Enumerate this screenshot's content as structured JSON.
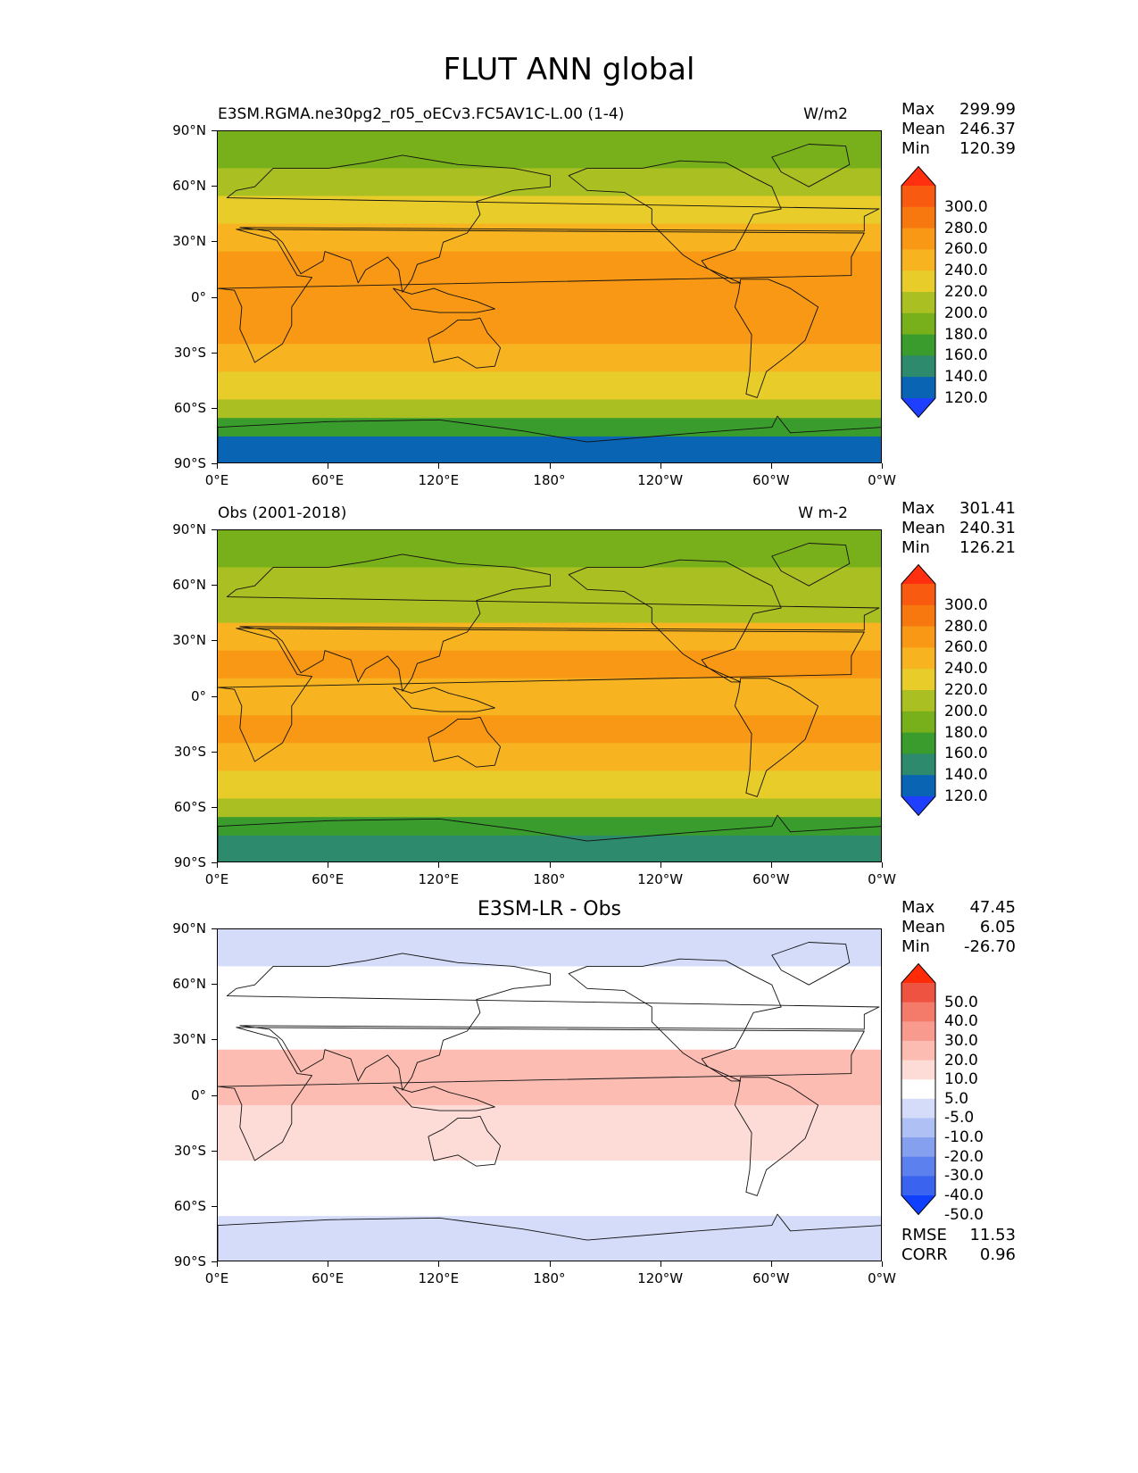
{
  "figure_title": "FLUT ANN global",
  "axis": {
    "yticks": [
      "90°N",
      "60°N",
      "30°N",
      "0°",
      "30°S",
      "60°S",
      "90°S"
    ],
    "xticks": [
      "0°E",
      "60°E",
      "120°E",
      "180°",
      "120°W",
      "60°W",
      "0°W"
    ]
  },
  "colors": {
    "abs_levels": [
      "#1f3fff",
      "#0a64b4",
      "#2e8a6c",
      "#3a9c2c",
      "#78b01c",
      "#aabf22",
      "#e8cc2a",
      "#f8b420",
      "#f89814",
      "#f87810",
      "#f85a10",
      "#ff3010"
    ],
    "diff_levels": [
      "#1040ff",
      "#3a64f0",
      "#5c80ee",
      "#86a0f0",
      "#aec0f4",
      "#d4dcfa",
      "#ffffff",
      "#fddcd8",
      "#fcbcb2",
      "#f89a8e",
      "#f47a6a",
      "#ee5240",
      "#ff2a08"
    ]
  },
  "panels": [
    {
      "left_title": "E3SM.RGMA.ne30pg2_r05_oECv3.FC5AV1C-L.00 (1-4)",
      "right_title": "W/m2",
      "center_title": "",
      "stats": [
        {
          "label": "Max",
          "value": "299.99"
        },
        {
          "label": "Mean",
          "value": "246.37"
        },
        {
          "label": "Min",
          "value": "120.39"
        }
      ],
      "colorbar_labels": [
        "300.0",
        "280.0",
        "260.0",
        "240.0",
        "220.0",
        "200.0",
        "180.0",
        "160.0",
        "140.0",
        "120.0"
      ]
    },
    {
      "left_title": "Obs (2001-2018)",
      "right_title": "W m-2",
      "center_title": "",
      "stats": [
        {
          "label": "Max",
          "value": "301.41"
        },
        {
          "label": "Mean",
          "value": "240.31"
        },
        {
          "label": "Min",
          "value": "126.21"
        }
      ],
      "colorbar_labels": [
        "300.0",
        "280.0",
        "260.0",
        "240.0",
        "220.0",
        "200.0",
        "180.0",
        "160.0",
        "140.0",
        "120.0"
      ]
    },
    {
      "left_title": "",
      "right_title": "",
      "center_title": "E3SM-LR - Obs",
      "stats": [
        {
          "label": "Max",
          "value": "47.45"
        },
        {
          "label": "Mean",
          "value": "6.05"
        },
        {
          "label": "Min",
          "value": "-26.70"
        }
      ],
      "colorbar_labels": [
        "50.0",
        "40.0",
        "30.0",
        "20.0",
        "10.0",
        "5.0",
        "-5.0",
        "-10.0",
        "-20.0",
        "-30.0",
        "-40.0",
        "-50.0"
      ],
      "footer_stats": [
        {
          "label": "RMSE",
          "value": "11.53"
        },
        {
          "label": "CORR",
          "value": "0.96"
        }
      ]
    }
  ],
  "chart_data": [
    {
      "type": "heatmap",
      "title": "E3SM.RGMA.ne30pg2_r05_oECv3.FC5AV1C-L.00 (1-4)",
      "units": "W/m2",
      "x_range": [
        0,
        360
      ],
      "y_range": [
        -90,
        90
      ],
      "levels": [
        120,
        140,
        160,
        180,
        200,
        220,
        240,
        260,
        280,
        300
      ],
      "max": 299.99,
      "mean": 246.37,
      "min": 120.39,
      "zonal_bands": [
        {
          "lat": [
            70,
            90
          ],
          "value": 185
        },
        {
          "lat": [
            55,
            70
          ],
          "value": 205
        },
        {
          "lat": [
            40,
            55
          ],
          "value": 220
        },
        {
          "lat": [
            25,
            40
          ],
          "value": 245
        },
        {
          "lat": [
            10,
            25
          ],
          "value": 268
        },
        {
          "lat": [
            -10,
            10
          ],
          "value": 262
        },
        {
          "lat": [
            -25,
            -10
          ],
          "value": 272
        },
        {
          "lat": [
            -40,
            -25
          ],
          "value": 258
        },
        {
          "lat": [
            -55,
            -40
          ],
          "value": 228
        },
        {
          "lat": [
            -65,
            -55
          ],
          "value": 205
        },
        {
          "lat": [
            -75,
            -65
          ],
          "value": 178
        },
        {
          "lat": [
            -90,
            -75
          ],
          "value": 138
        }
      ]
    },
    {
      "type": "heatmap",
      "title": "Obs (2001-2018)",
      "units": "W m-2",
      "x_range": [
        0,
        360
      ],
      "y_range": [
        -90,
        90
      ],
      "levels": [
        120,
        140,
        160,
        180,
        200,
        220,
        240,
        260,
        280,
        300
      ],
      "max": 301.41,
      "mean": 240.31,
      "min": 126.21,
      "zonal_bands": [
        {
          "lat": [
            70,
            90
          ],
          "value": 182
        },
        {
          "lat": [
            55,
            70
          ],
          "value": 200
        },
        {
          "lat": [
            40,
            55
          ],
          "value": 218
        },
        {
          "lat": [
            25,
            40
          ],
          "value": 242
        },
        {
          "lat": [
            10,
            25
          ],
          "value": 262
        },
        {
          "lat": [
            -10,
            10
          ],
          "value": 248
        },
        {
          "lat": [
            -25,
            -10
          ],
          "value": 266
        },
        {
          "lat": [
            -40,
            -25
          ],
          "value": 252
        },
        {
          "lat": [
            -55,
            -40
          ],
          "value": 225
        },
        {
          "lat": [
            -65,
            -55
          ],
          "value": 200
        },
        {
          "lat": [
            -75,
            -65
          ],
          "value": 175
        },
        {
          "lat": [
            -90,
            -75
          ],
          "value": 142
        }
      ]
    },
    {
      "type": "heatmap",
      "title": "E3SM-LR - Obs",
      "x_range": [
        0,
        360
      ],
      "y_range": [
        -90,
        90
      ],
      "levels": [
        -50,
        -40,
        -30,
        -20,
        -10,
        -5,
        5,
        10,
        20,
        30,
        40,
        50
      ],
      "max": 47.45,
      "mean": 6.05,
      "min": -26.7,
      "rmse": 11.53,
      "corr": 0.96,
      "zonal_bands": [
        {
          "lat": [
            70,
            90
          ],
          "value": -7
        },
        {
          "lat": [
            25,
            70
          ],
          "value": 2
        },
        {
          "lat": [
            -5,
            25
          ],
          "value": 12
        },
        {
          "lat": [
            -35,
            -5
          ],
          "value": 8
        },
        {
          "lat": [
            -65,
            -35
          ],
          "value": 2
        },
        {
          "lat": [
            -90,
            -65
          ],
          "value": -6
        }
      ]
    }
  ]
}
